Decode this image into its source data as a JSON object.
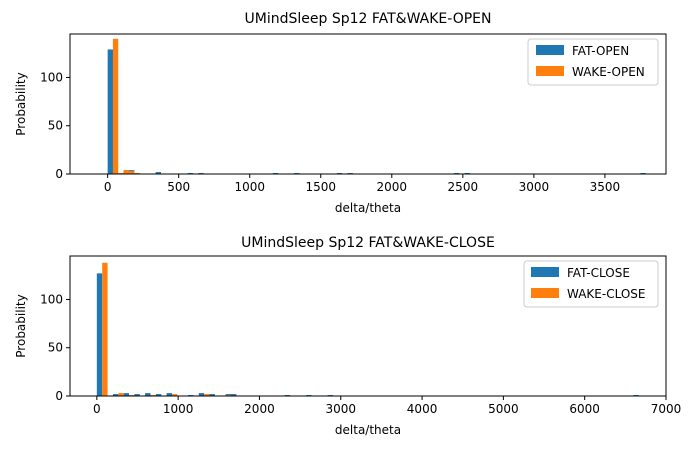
{
  "chart_data": [
    {
      "type": "bar",
      "title": "UMindSleep Sp12 FAT&WAKE-OPEN",
      "xlabel": "delta/theta",
      "ylabel": "Probability",
      "xlim": [
        -265,
        3930
      ],
      "ylim": [
        0,
        145
      ],
      "xticks": [
        0,
        500,
        1000,
        1500,
        2000,
        2500,
        3000,
        3500
      ],
      "yticks": [
        0,
        50,
        100
      ],
      "grid": false,
      "legend_position": "top-right",
      "bin_width": 37.5,
      "series": [
        {
          "name": "FAT-OPEN",
          "color": "#1f77b4",
          "x": [
            0,
            112,
            150,
            188,
            338,
            563,
            638,
            1163,
            1313,
            1613,
            1688,
            2438,
            2513,
            3750
          ],
          "values": [
            129,
            4,
            4,
            1,
            2,
            1,
            1,
            1,
            1,
            1,
            1,
            1,
            1,
            1
          ]
        },
        {
          "name": "WAKE-OPEN",
          "color": "#ff7f0e",
          "x": [
            37,
            75,
            112,
            150,
            188
          ],
          "values": [
            140,
            1,
            4,
            3,
            1
          ]
        }
      ]
    },
    {
      "type": "bar",
      "title": "UMindSleep Sp12 FAT&WAKE-CLOSE",
      "xlabel": "delta/theta",
      "ylabel": "Probability",
      "xlim": [
        -330,
        7000
      ],
      "ylim": [
        0,
        145
      ],
      "xticks": [
        0,
        1000,
        2000,
        3000,
        4000,
        5000,
        6000,
        7000
      ],
      "yticks": [
        0,
        50,
        100
      ],
      "grid": false,
      "legend_position": "top-right",
      "bin_width": 66,
      "series": [
        {
          "name": "FAT-CLOSE",
          "color": "#1f77b4",
          "x": [
            0,
            198,
            330,
            462,
            594,
            726,
            858,
            1122,
            1254,
            1386,
            1584,
            1650,
            2310,
            2574,
            2838,
            6600
          ],
          "values": [
            127,
            2,
            3,
            2,
            3,
            2,
            3,
            1,
            3,
            2,
            2,
            2,
            1,
            1,
            1,
            1
          ]
        },
        {
          "name": "WAKE-CLOSE",
          "color": "#ff7f0e",
          "x": [
            66,
            264,
            396,
            660,
            924,
            1320,
            1584
          ],
          "values": [
            138,
            3,
            1,
            1,
            2,
            2,
            1
          ]
        }
      ]
    }
  ]
}
